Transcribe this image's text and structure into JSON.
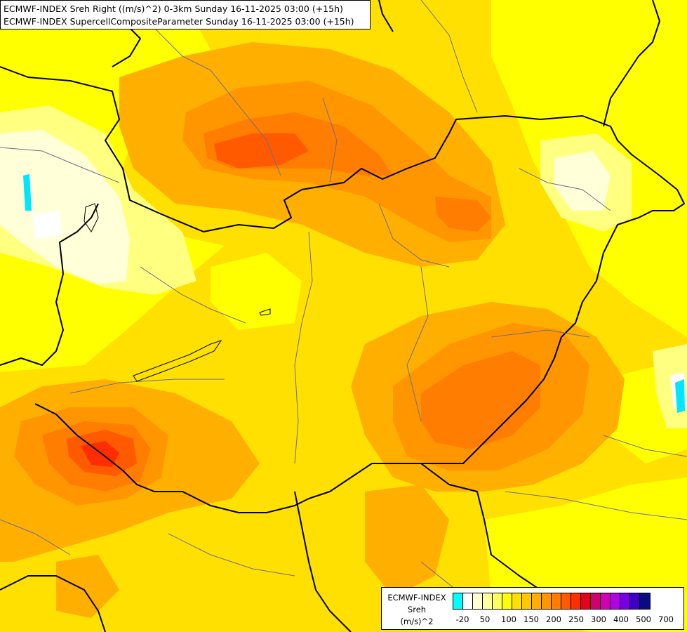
{
  "map": {
    "titles": [
      "ECMWF-INDEX Sreh Right ((m/s)^2) 0-3km Sunday 16-11-2025 03:00 (+15h)",
      "ECMWF-INDEX SupercellCompositeParameter Sunday 16-11-2025 03:00 (+15h)"
    ]
  },
  "legend": {
    "title_lines": [
      "ECMWF-INDEX",
      "Sreh",
      "(m/s)^2"
    ],
    "colors": [
      "#00ffff",
      "#ffffff",
      "#ffffd0",
      "#ffffa0",
      "#ffff60",
      "#ffff00",
      "#ffe000",
      "#ffc800",
      "#ffaf00",
      "#ff9600",
      "#ff7d00",
      "#ff5a00",
      "#ff2d00",
      "#e6001e",
      "#d2006e",
      "#d200b4",
      "#b400e6",
      "#7800e6",
      "#3c00c8",
      "#0a0a82"
    ],
    "tick_labels": [
      "-20",
      "50",
      "100",
      "150",
      "200",
      "250",
      "300",
      "400",
      "500",
      "700"
    ]
  }
}
